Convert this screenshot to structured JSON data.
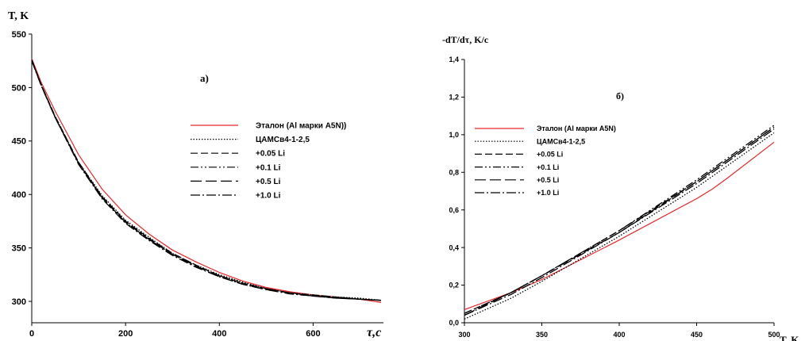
{
  "chart_data": [
    {
      "type": "line",
      "panel_label": "a)",
      "ylabel": "T, K",
      "xlabel": "τ,c",
      "xlim": [
        0,
        750
      ],
      "ylim": [
        280,
        550
      ],
      "xticks": [
        0,
        200,
        400,
        600
      ],
      "yticks": [
        300,
        350,
        400,
        450,
        500,
        550
      ],
      "grid": false,
      "legend_position": "right",
      "series": [
        {
          "name": "Эталон (Al марки A5N))",
          "color": "#e8262b",
          "dash": "",
          "x": [
            0,
            20,
            50,
            100,
            150,
            200,
            250,
            300,
            350,
            400,
            450,
            500,
            550,
            600,
            650,
            700,
            745
          ],
          "y": [
            527,
            505,
            478,
            437,
            405,
            381,
            363,
            348,
            337,
            327,
            319,
            313,
            309,
            306,
            304,
            302,
            299
          ]
        },
        {
          "name": "ЦАМСв4-1-2,5",
          "color": "#000000",
          "dash": "1.5,2",
          "x": [
            0,
            20,
            50,
            100,
            150,
            200,
            250,
            300,
            350,
            400,
            450,
            500,
            550,
            600,
            650,
            700,
            745
          ],
          "y": [
            525,
            502,
            473,
            430,
            399,
            376,
            360,
            345,
            334,
            325,
            318,
            312,
            308,
            306,
            304,
            303,
            301
          ]
        },
        {
          "name": "+0.05 Li",
          "color": "#000000",
          "dash": "9,4",
          "x": [
            0,
            20,
            50,
            100,
            150,
            200,
            250,
            300,
            350,
            400,
            450,
            500,
            550,
            600,
            650,
            700,
            745
          ],
          "y": [
            526,
            503,
            473,
            430,
            398,
            375,
            359,
            345,
            334,
            324,
            317,
            312,
            308,
            306,
            304,
            302,
            301
          ]
        },
        {
          "name": "+0.1 Li",
          "color": "#000000",
          "dash": "10,3,2,3,2,3",
          "x": [
            0,
            20,
            50,
            100,
            150,
            200,
            250,
            300,
            350,
            400,
            450,
            500,
            550,
            600,
            650,
            700,
            745
          ],
          "y": [
            525,
            503,
            472,
            429,
            397,
            374,
            358,
            344,
            333,
            324,
            317,
            312,
            308,
            305,
            304,
            302,
            301
          ]
        },
        {
          "name": "+0.5 Li",
          "color": "#000000",
          "dash": "14,5",
          "x": [
            0,
            20,
            50,
            100,
            150,
            200,
            250,
            300,
            350,
            400,
            450,
            500,
            550,
            600,
            650,
            700,
            745
          ],
          "y": [
            526,
            502,
            472,
            429,
            397,
            374,
            358,
            344,
            333,
            323,
            316,
            311,
            308,
            305,
            303,
            302,
            301
          ]
        },
        {
          "name": "+1.0 Li",
          "color": "#000000",
          "dash": "12,3,2,3",
          "x": [
            0,
            20,
            50,
            100,
            150,
            200,
            250,
            300,
            350,
            400,
            450,
            500,
            550,
            600,
            650,
            700,
            745
          ],
          "y": [
            525,
            502,
            472,
            428,
            396,
            373,
            357,
            343,
            332,
            323,
            316,
            311,
            307,
            305,
            303,
            302,
            301
          ]
        }
      ]
    },
    {
      "type": "line",
      "panel_label": "б)",
      "ylabel": "-dT/dτ, K/c",
      "xlabel": "T, K",
      "xlim": [
        300,
        500
      ],
      "ylim": [
        0.0,
        1.4
      ],
      "xticks": [
        300,
        350,
        400,
        450,
        500
      ],
      "yticks": [
        "0,0",
        "0,2",
        "0,4",
        "0,6",
        "0,8",
        "1,0",
        "1,2",
        "1,4"
      ],
      "ytick_values": [
        0.0,
        0.2,
        0.4,
        0.6,
        0.8,
        1.0,
        1.2,
        1.4
      ],
      "grid": false,
      "legend_position": "left",
      "series": [
        {
          "name": "Эталон (Al марки A5N)",
          "color": "#e8262b",
          "dash": "",
          "x": [
            300,
            330,
            350,
            400,
            450,
            460,
            470,
            500
          ],
          "y": [
            0.07,
            0.16,
            0.23,
            0.44,
            0.66,
            0.71,
            0.77,
            0.96
          ]
        },
        {
          "name": "ЦАМСв4-1-2,5",
          "color": "#000000",
          "dash": "1.5,2",
          "x": [
            300,
            330,
            350,
            400,
            450,
            500
          ],
          "y": [
            0.02,
            0.13,
            0.22,
            0.46,
            0.72,
            1.01
          ]
        },
        {
          "name": "+0.05 Li",
          "color": "#000000",
          "dash": "9,4",
          "x": [
            300,
            330,
            350,
            400,
            450,
            500
          ],
          "y": [
            0.05,
            0.16,
            0.25,
            0.49,
            0.75,
            1.04
          ]
        },
        {
          "name": "+0.1 Li",
          "color": "#000000",
          "dash": "10,3,2,3,2,3",
          "x": [
            300,
            330,
            350,
            400,
            450,
            500
          ],
          "y": [
            0.05,
            0.16,
            0.25,
            0.49,
            0.76,
            1.05
          ]
        },
        {
          "name": "+0.5 Li",
          "color": "#000000",
          "dash": "14,5",
          "x": [
            300,
            330,
            350,
            400,
            450,
            500
          ],
          "y": [
            0.04,
            0.16,
            0.25,
            0.48,
            0.75,
            1.04
          ]
        },
        {
          "name": "+1.0 Li",
          "color": "#000000",
          "dash": "12,3,2,3",
          "x": [
            300,
            330,
            350,
            400,
            450,
            500
          ],
          "y": [
            0.04,
            0.15,
            0.24,
            0.48,
            0.74,
            1.03
          ]
        }
      ]
    }
  ]
}
